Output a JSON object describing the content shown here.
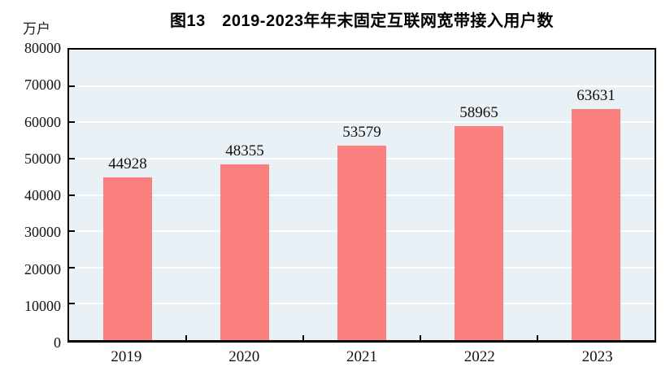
{
  "title": "图13　2019-2023年年末固定互联网宽带接入用户数",
  "unit_label": "万户",
  "chart_data": {
    "type": "bar",
    "title": "图13　2019-2023年年末固定互联网宽带接入用户数",
    "categories": [
      "2019",
      "2020",
      "2021",
      "2022",
      "2023"
    ],
    "values": [
      44928,
      48355,
      53579,
      58965,
      63631
    ],
    "xlabel": "",
    "ylabel": "万户",
    "ylim": [
      0,
      80000
    ],
    "yticks": [
      0,
      10000,
      20000,
      30000,
      40000,
      50000,
      60000,
      70000,
      80000
    ],
    "grid": true,
    "legend_position": "none",
    "data_labels": true
  },
  "colors": {
    "bar_fill": "#FA8080",
    "plot_background": "#E9F1F6",
    "gridline": "#FFFFFF",
    "axis_line": "#000000",
    "text": "#111111"
  }
}
